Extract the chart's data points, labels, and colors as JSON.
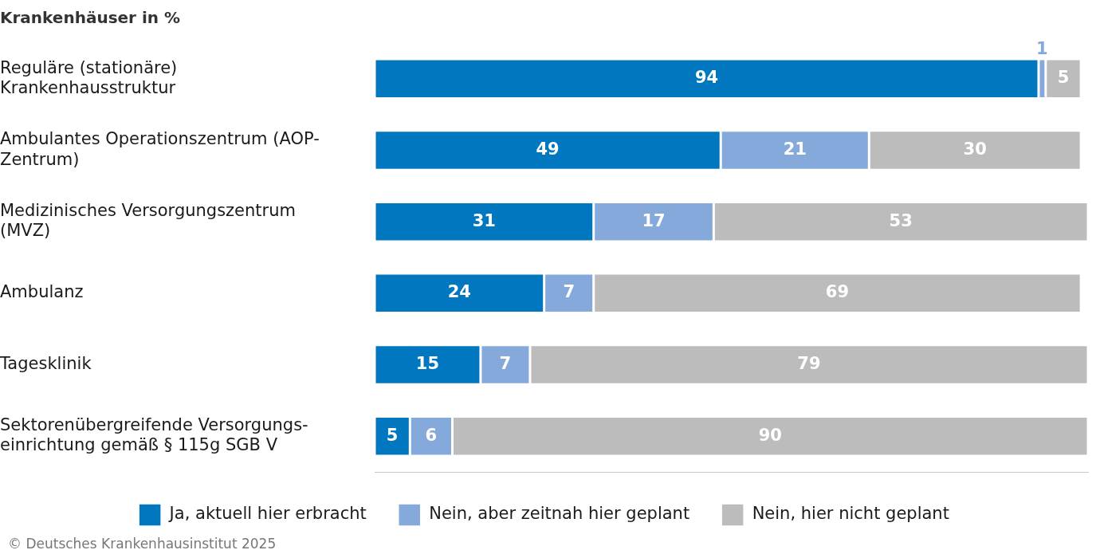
{
  "chart_data": {
    "type": "bar",
    "orientation": "horizontal",
    "stacked": true,
    "tick_labels": "y",
    "title": "Krankenhäuser in %",
    "categories": [
      "Reguläre (stationäre) Krankenhausstruktur",
      "Ambulantes Operationszentrum (AOP-Zentrum)",
      "Medizinisches Versorgungszentrum (MVZ)",
      "Ambulanz",
      "Tagesklinik",
      "Sektorenübergreifende Versorgungs-einrichtung gemäß § 115g SGB V"
    ],
    "series": [
      {
        "name": "Ja, aktuell hier erbracht",
        "color": "#0077bf",
        "values": [
          94,
          49,
          31,
          24,
          15,
          5
        ]
      },
      {
        "name": "Nein, aber zeitnah hier geplant",
        "color": "#86a9dc",
        "values": [
          1,
          21,
          17,
          7,
          7,
          6
        ]
      },
      {
        "name": "Nein, hier nicht geplant",
        "color": "#bcbcbc",
        "values": [
          5,
          30,
          53,
          69,
          79,
          90
        ]
      }
    ],
    "data_labels": true,
    "legend": "bottom",
    "annotations": [
      "© Deutsches Krankenhausinstitut 2025"
    ]
  }
}
